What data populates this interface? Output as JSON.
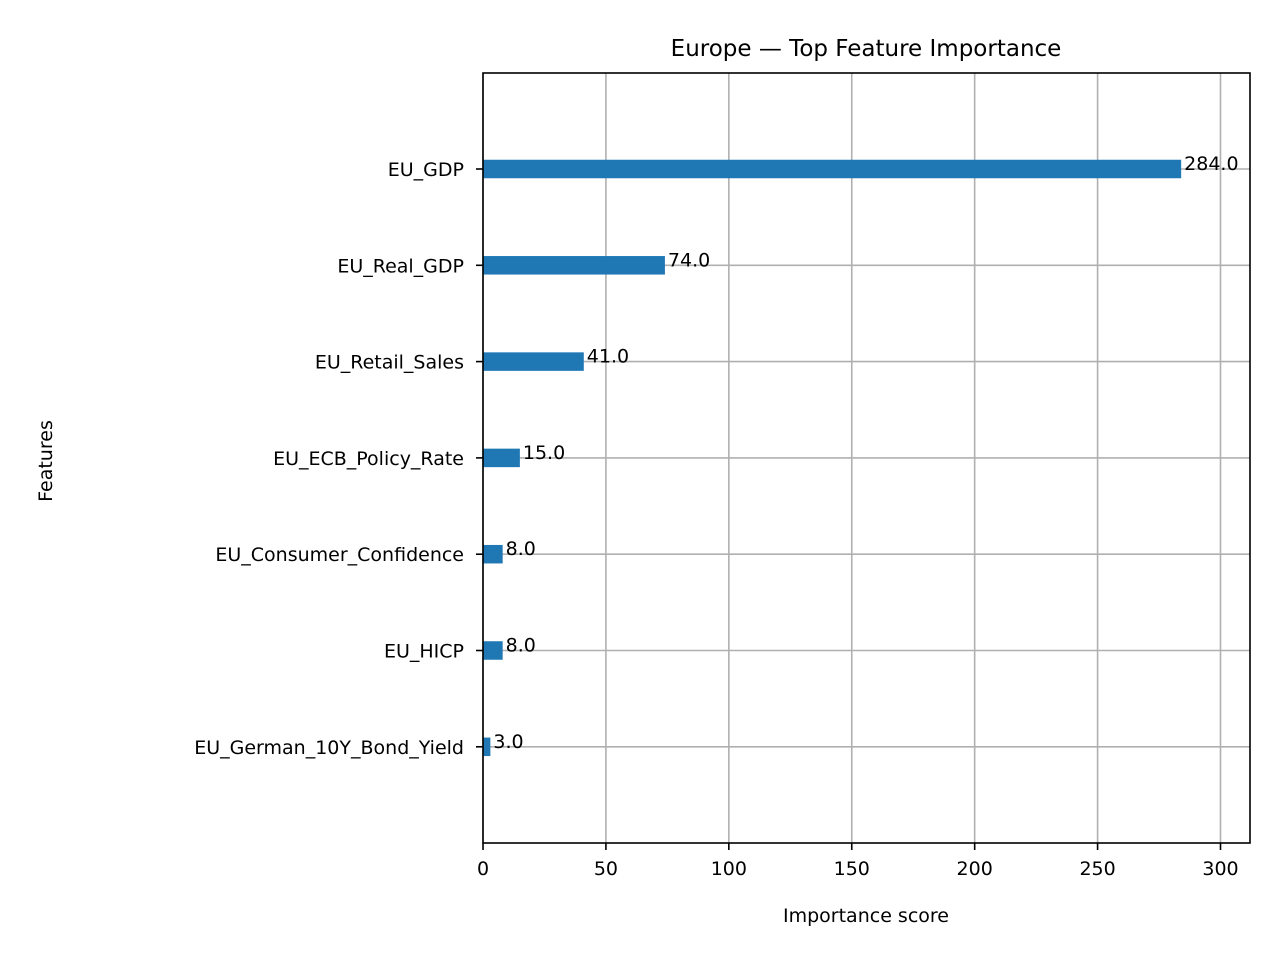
{
  "chart_data": {
    "type": "bar",
    "orientation": "horizontal",
    "title": "Europe — Top Feature Importance",
    "xlabel": "Importance score",
    "ylabel": "Features",
    "categories": [
      "EU_GDP",
      "EU_Real_GDP",
      "EU_Retail_Sales",
      "EU_ECB_Policy_Rate",
      "EU_Consumer_Confidence",
      "EU_HICP",
      "EU_German_10Y_Bond_Yield"
    ],
    "values": [
      284.0,
      74.0,
      41.0,
      15.0,
      8.0,
      8.0,
      3.0
    ],
    "data_labels": [
      "284.0",
      "74.0",
      "41.0",
      "15.0",
      "8.0",
      "8.0",
      "3.0"
    ],
    "xticks": [
      0,
      50,
      100,
      150,
      200,
      250,
      300
    ],
    "xtick_labels": [
      "0",
      "50",
      "100",
      "150",
      "200",
      "250",
      "300"
    ],
    "xlim": [
      0,
      312
    ],
    "grid": true,
    "bar_color": "#1f77b4",
    "grid_color": "#b0b0b0"
  }
}
